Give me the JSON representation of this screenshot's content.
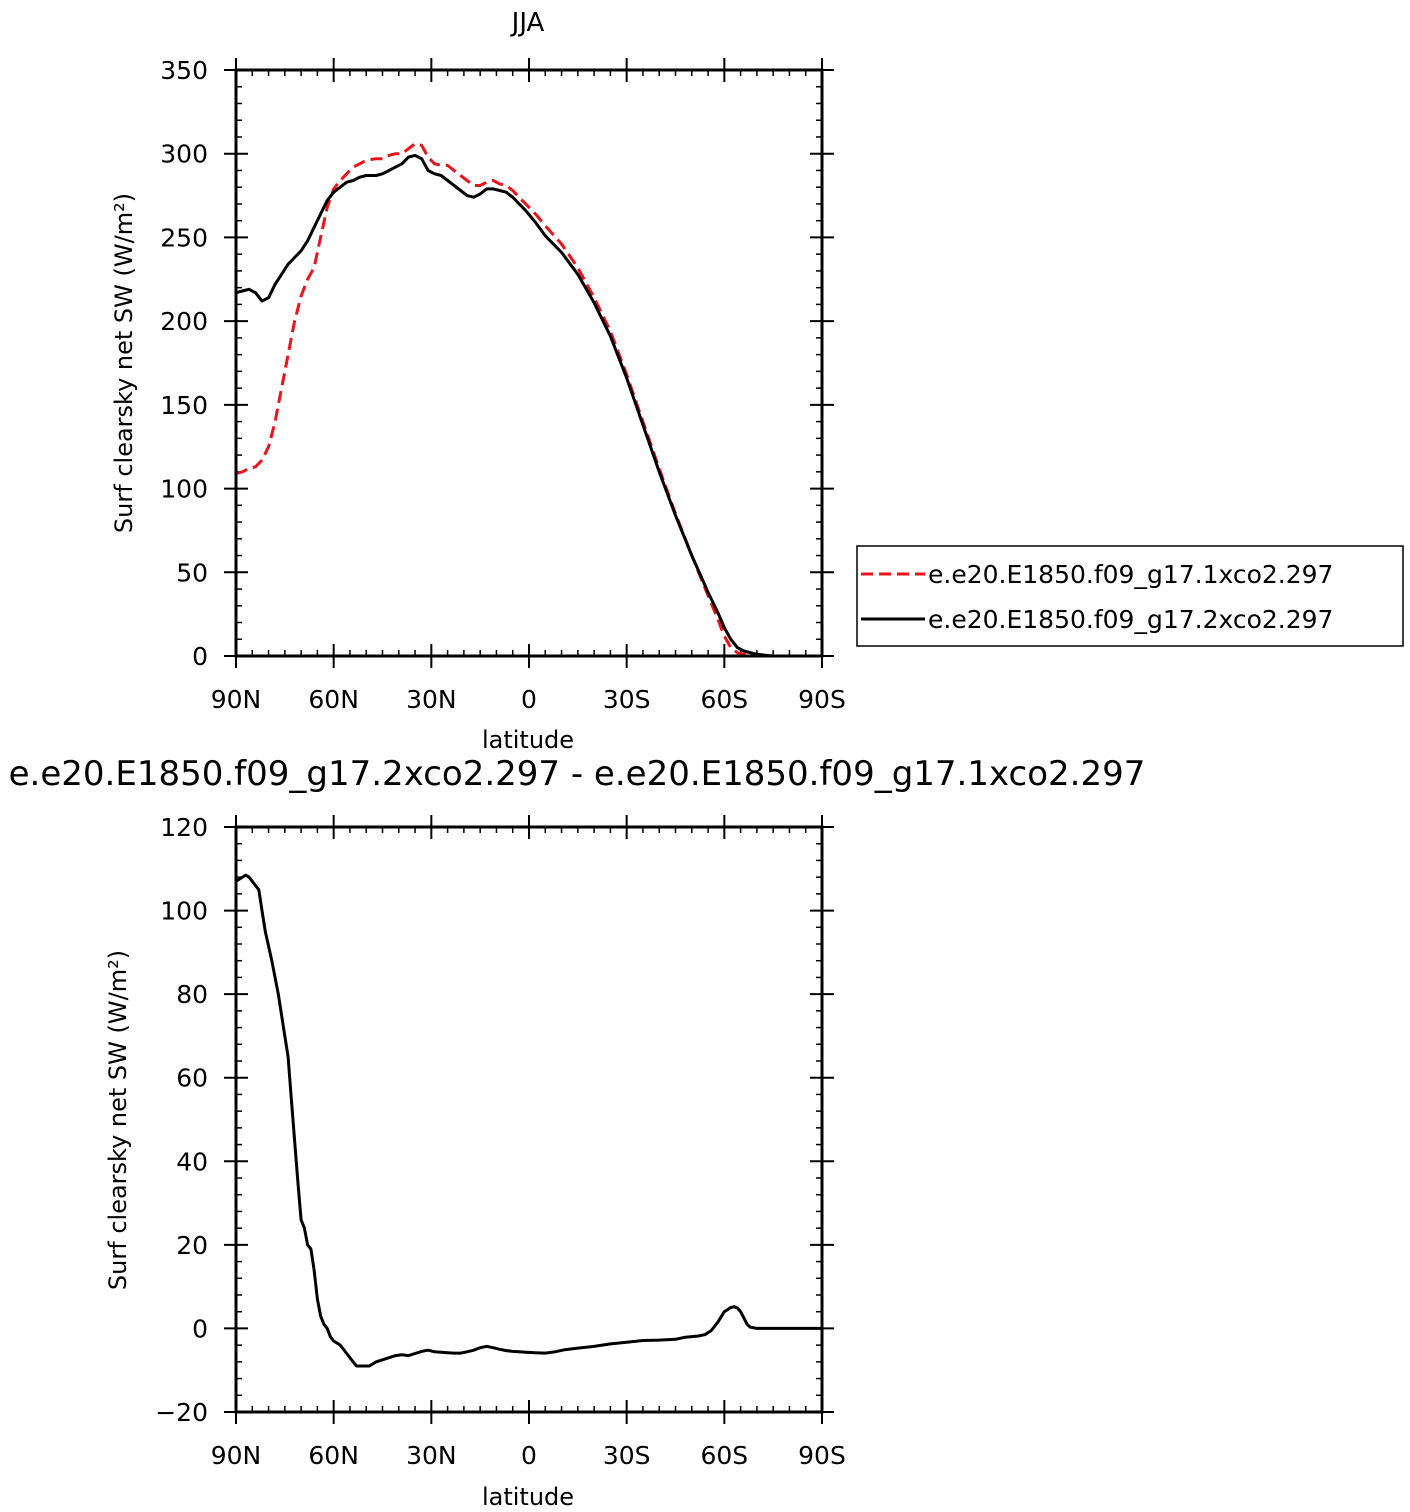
{
  "chart_data": [
    {
      "type": "line",
      "title": "JJA",
      "xlabel": "latitude",
      "ylabel": "Surf clearsky net SW (W/m²)",
      "xlim": [
        90,
        -90
      ],
      "ylim": [
        0,
        350
      ],
      "x_ticks": [
        {
          "value": 90,
          "label": "90N"
        },
        {
          "value": 60,
          "label": "60N"
        },
        {
          "value": 30,
          "label": "30N"
        },
        {
          "value": 0,
          "label": "0"
        },
        {
          "value": -30,
          "label": "30S"
        },
        {
          "value": -60,
          "label": "60S"
        },
        {
          "value": -90,
          "label": "90S"
        }
      ],
      "y_ticks": [
        {
          "value": 0,
          "label": "0"
        },
        {
          "value": 50,
          "label": "50"
        },
        {
          "value": 100,
          "label": "100"
        },
        {
          "value": 150,
          "label": "150"
        },
        {
          "value": 200,
          "label": "200"
        },
        {
          "value": 250,
          "label": "250"
        },
        {
          "value": 300,
          "label": "300"
        },
        {
          "value": 350,
          "label": "350"
        }
      ],
      "legend_position": "right",
      "series": [
        {
          "name": "e.e20.E1850.f09_g17.1xco2.297",
          "color": "#e8141c",
          "dash": "dashed",
          "points": [
            [
              90,
              109
            ],
            [
              88,
              110
            ],
            [
              86,
              112
            ],
            [
              84,
              113
            ],
            [
              82,
              117
            ],
            [
              80,
              125
            ],
            [
              78,
              140
            ],
            [
              76,
              160
            ],
            [
              74,
              180
            ],
            [
              72,
              200
            ],
            [
              70,
              215
            ],
            [
              68,
              225
            ],
            [
              66,
              232
            ],
            [
              64,
              250
            ],
            [
              62,
              268
            ],
            [
              60,
              279
            ],
            [
              58,
              284
            ],
            [
              56,
              288
            ],
            [
              54,
              292
            ],
            [
              52,
              294
            ],
            [
              50,
              296
            ],
            [
              47,
              297
            ],
            [
              45,
              297
            ],
            [
              43,
              299
            ],
            [
              41,
              300
            ],
            [
              39,
              300
            ],
            [
              37,
              303
            ],
            [
              35,
              306
            ],
            [
              33,
              305
            ],
            [
              31,
              298
            ],
            [
              29,
              294
            ],
            [
              27,
              293
            ],
            [
              25,
              293
            ],
            [
              23,
              290
            ],
            [
              21,
              287
            ],
            [
              19,
              284
            ],
            [
              17,
              281
            ],
            [
              15,
              281
            ],
            [
              13,
              283
            ],
            [
              11,
              284
            ],
            [
              9,
              282
            ],
            [
              7,
              281
            ],
            [
              5,
              278
            ],
            [
              3,
              274
            ],
            [
              1,
              270
            ],
            [
              -2,
              264
            ],
            [
              -5,
              257
            ],
            [
              -10,
              246
            ],
            [
              -15,
              232
            ],
            [
              -20,
              214
            ],
            [
              -25,
              194
            ],
            [
              -30,
              168
            ],
            [
              -35,
              140
            ],
            [
              -40,
              112
            ],
            [
              -45,
              85
            ],
            [
              -50,
              60
            ],
            [
              -55,
              36
            ],
            [
              -58,
              22
            ],
            [
              -60,
              12
            ],
            [
              -62,
              5
            ],
            [
              -64,
              2
            ],
            [
              -66,
              1
            ],
            [
              -70,
              0
            ],
            [
              -75,
              0
            ],
            [
              -80,
              0
            ],
            [
              -85,
              0
            ]
          ]
        },
        {
          "name": "e.e20.E1850.f09_g17.2xco2.297",
          "color": "#000000",
          "dash": "solid",
          "points": [
            [
              90,
              217
            ],
            [
              88,
              218
            ],
            [
              86,
              219
            ],
            [
              84,
              217
            ],
            [
              82,
              212
            ],
            [
              80,
              214
            ],
            [
              78,
              222
            ],
            [
              76,
              228
            ],
            [
              74,
              234
            ],
            [
              72,
              238
            ],
            [
              70,
              242
            ],
            [
              68,
              248
            ],
            [
              66,
              256
            ],
            [
              64,
              264
            ],
            [
              62,
              272
            ],
            [
              60,
              277
            ],
            [
              58,
              280
            ],
            [
              56,
              283
            ],
            [
              54,
              284
            ],
            [
              52,
              286
            ],
            [
              50,
              287
            ],
            [
              47,
              287
            ],
            [
              45,
              288
            ],
            [
              43,
              290
            ],
            [
              41,
              292
            ],
            [
              39,
              294
            ],
            [
              37,
              298
            ],
            [
              35,
              299
            ],
            [
              33,
              297
            ],
            [
              31,
              290
            ],
            [
              29,
              288
            ],
            [
              27,
              287
            ],
            [
              25,
              284
            ],
            [
              23,
              281
            ],
            [
              21,
              278
            ],
            [
              19,
              275
            ],
            [
              17,
              274
            ],
            [
              15,
              276
            ],
            [
              13,
              279
            ],
            [
              11,
              279
            ],
            [
              9,
              278
            ],
            [
              7,
              277
            ],
            [
              5,
              274
            ],
            [
              3,
              270
            ],
            [
              1,
              266
            ],
            [
              -2,
              259
            ],
            [
              -5,
              251
            ],
            [
              -10,
              241
            ],
            [
              -15,
              228
            ],
            [
              -20,
              211
            ],
            [
              -25,
              191
            ],
            [
              -30,
              166
            ],
            [
              -35,
              138
            ],
            [
              -40,
              110
            ],
            [
              -45,
              84
            ],
            [
              -50,
              60
            ],
            [
              -55,
              38
            ],
            [
              -58,
              26
            ],
            [
              -60,
              17
            ],
            [
              -62,
              10
            ],
            [
              -64,
              5
            ],
            [
              -66,
              3
            ],
            [
              -70,
              1
            ],
            [
              -75,
              0
            ],
            [
              -80,
              0
            ],
            [
              -85,
              0
            ]
          ]
        }
      ]
    },
    {
      "type": "line",
      "title": "e.e20.E1850.f09_g17.2xco2.297 - e.e20.E1850.f09_g17.1xco2.297",
      "xlabel": "latitude",
      "ylabel": "Surf clearsky net SW (W/m²)",
      "xlim": [
        90,
        -90
      ],
      "ylim": [
        -20,
        120
      ],
      "x_ticks": [
        {
          "value": 90,
          "label": "90N"
        },
        {
          "value": 60,
          "label": "60N"
        },
        {
          "value": 30,
          "label": "30N"
        },
        {
          "value": 0,
          "label": "0"
        },
        {
          "value": -30,
          "label": "30S"
        },
        {
          "value": -60,
          "label": "60S"
        },
        {
          "value": -90,
          "label": "90S"
        }
      ],
      "y_ticks": [
        {
          "value": -20,
          "label": "−20"
        },
        {
          "value": 0,
          "label": "0"
        },
        {
          "value": 20,
          "label": "20"
        },
        {
          "value": 40,
          "label": "40"
        },
        {
          "value": 60,
          "label": "60"
        },
        {
          "value": 80,
          "label": "80"
        },
        {
          "value": 100,
          "label": "100"
        },
        {
          "value": 120,
          "label": "120"
        }
      ],
      "series": [
        {
          "color": "#000000",
          "dash": "solid",
          "points": [
            [
              90,
              107
            ],
            [
              88,
              108
            ],
            [
              87,
              108.5
            ],
            [
              86,
              108
            ],
            [
              84,
              106
            ],
            [
              83,
              105
            ],
            [
              82,
              100
            ],
            [
              81,
              95
            ],
            [
              79,
              88
            ],
            [
              77,
              80
            ],
            [
              75,
              70
            ],
            [
              74,
              65
            ],
            [
              73,
              55
            ],
            [
              72,
              45
            ],
            [
              71,
              35
            ],
            [
              70,
              26
            ],
            [
              69,
              24
            ],
            [
              68,
              20
            ],
            [
              67,
              19
            ],
            [
              66,
              14
            ],
            [
              65,
              7
            ],
            [
              64,
              3
            ],
            [
              63,
              1
            ],
            [
              62,
              0
            ],
            [
              61,
              -2
            ],
            [
              60,
              -3
            ],
            [
              58,
              -4
            ],
            [
              56,
              -6
            ],
            [
              54,
              -8
            ],
            [
              53,
              -9
            ],
            [
              51,
              -9
            ],
            [
              49,
              -9
            ],
            [
              47,
              -8
            ],
            [
              45,
              -7.5
            ],
            [
              43,
              -7
            ],
            [
              41,
              -6.5
            ],
            [
              39,
              -6.3
            ],
            [
              37,
              -6.5
            ],
            [
              35,
              -6
            ],
            [
              33,
              -5.5
            ],
            [
              31,
              -5.2
            ],
            [
              29,
              -5.6
            ],
            [
              27,
              -5.7
            ],
            [
              25,
              -5.8
            ],
            [
              23,
              -5.9
            ],
            [
              21,
              -5.9
            ],
            [
              19,
              -5.6
            ],
            [
              17,
              -5.2
            ],
            [
              15,
              -4.6
            ],
            [
              13,
              -4.3
            ],
            [
              11,
              -4.6
            ],
            [
              9,
              -5
            ],
            [
              7,
              -5.3
            ],
            [
              5,
              -5.5
            ],
            [
              3,
              -5.6
            ],
            [
              1,
              -5.7
            ],
            [
              -2,
              -5.8
            ],
            [
              -5,
              -5.9
            ],
            [
              -8,
              -5.6
            ],
            [
              -11,
              -5.1
            ],
            [
              -15,
              -4.7
            ],
            [
              -20,
              -4.3
            ],
            [
              -25,
              -3.7
            ],
            [
              -30,
              -3.3
            ],
            [
              -35,
              -2.9
            ],
            [
              -40,
              -2.8
            ],
            [
              -45,
              -2.6
            ],
            [
              -48,
              -2.1
            ],
            [
              -52,
              -1.8
            ],
            [
              -54,
              -1.5
            ],
            [
              -56,
              -0.5
            ],
            [
              -58,
              1.5
            ],
            [
              -60,
              4
            ],
            [
              -62,
              5
            ],
            [
              -63,
              5.2
            ],
            [
              -64,
              4.9
            ],
            [
              -65,
              4
            ],
            [
              -66,
              2.5
            ],
            [
              -67,
              1
            ],
            [
              -68,
              0.3
            ],
            [
              -70,
              0
            ],
            [
              -75,
              0
            ],
            [
              -80,
              0
            ],
            [
              -85,
              0
            ],
            [
              -90,
              0
            ]
          ]
        }
      ]
    }
  ]
}
